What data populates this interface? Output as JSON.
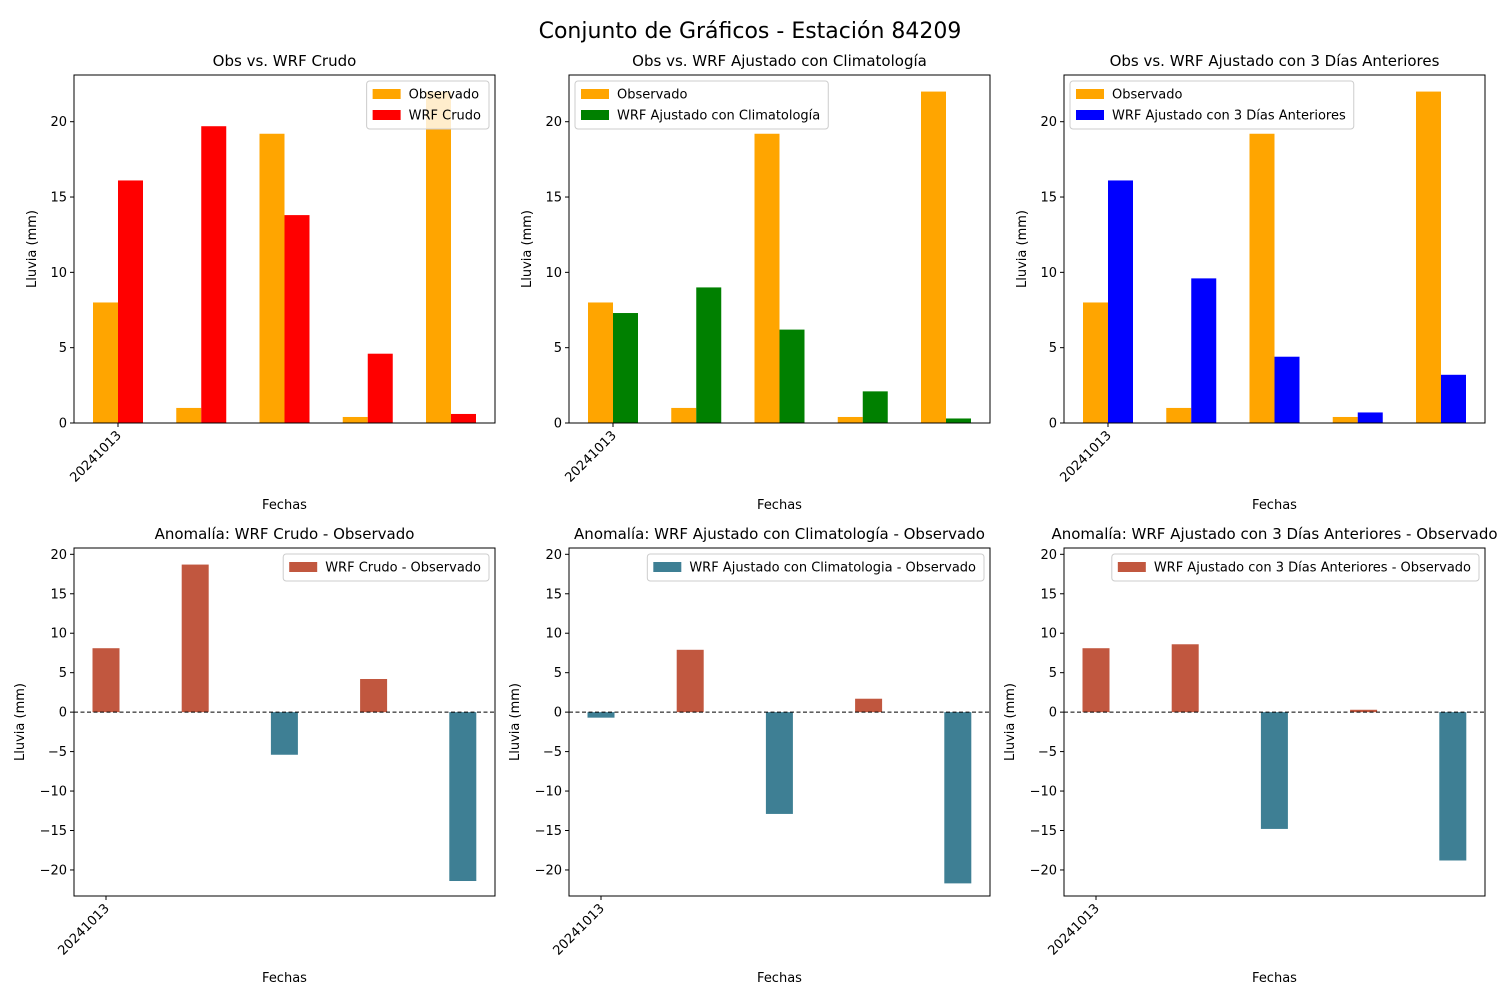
{
  "figure": {
    "title": "Conjunto de Gráficos - Estación 84209"
  },
  "colors": {
    "observado": "#FFA500",
    "wrf_crudo": "#FF0000",
    "wrf_clima": "#008000",
    "wrf_3dias": "#0000FF",
    "anom_pos": "#C1573F",
    "anom_neg": "#3E7F94"
  },
  "chart_data": [
    {
      "type": "bar",
      "title": "Obs vs. WRF Crudo",
      "xlabel": "Fechas",
      "ylabel": "Lluvia (mm)",
      "categories": [
        "20241013",
        "",
        "",
        "",
        ""
      ],
      "ylim": [
        0,
        23.1
      ],
      "yticks": [
        0,
        5,
        10,
        15,
        20
      ],
      "legend_position": "upper right",
      "series": [
        {
          "name": "Observado",
          "color_key": "observado",
          "values": [
            8.0,
            1.0,
            19.2,
            0.4,
            22.0
          ]
        },
        {
          "name": "WRF Crudo",
          "color_key": "wrf_crudo",
          "values": [
            16.1,
            19.7,
            13.8,
            4.6,
            0.6
          ]
        }
      ]
    },
    {
      "type": "bar",
      "title": "Obs vs. WRF Ajustado con Climatología",
      "xlabel": "Fechas",
      "ylabel": "Lluvia (mm)",
      "categories": [
        "20241013",
        "",
        "",
        "",
        ""
      ],
      "ylim": [
        0,
        23.1
      ],
      "yticks": [
        0,
        5,
        10,
        15,
        20
      ],
      "legend_position": "upper left",
      "series": [
        {
          "name": "Observado",
          "color_key": "observado",
          "values": [
            8.0,
            1.0,
            19.2,
            0.4,
            22.0
          ]
        },
        {
          "name": "WRF Ajustado con Climatología",
          "color_key": "wrf_clima",
          "values": [
            7.3,
            9.0,
            6.2,
            2.1,
            0.3
          ]
        }
      ]
    },
    {
      "type": "bar",
      "title": "Obs vs. WRF Ajustado con 3 Días Anteriores",
      "xlabel": "Fechas",
      "ylabel": "Lluvia (mm)",
      "categories": [
        "20241013",
        "",
        "",
        "",
        ""
      ],
      "ylim": [
        0,
        23.1
      ],
      "yticks": [
        0,
        5,
        10,
        15,
        20
      ],
      "legend_position": "upper left",
      "series": [
        {
          "name": "Observado",
          "color_key": "observado",
          "values": [
            8.0,
            1.0,
            19.2,
            0.4,
            22.0
          ]
        },
        {
          "name": "WRF Ajustado con 3 Días Anteriores",
          "color_key": "wrf_3dias",
          "values": [
            16.1,
            9.6,
            4.4,
            0.7,
            3.2
          ]
        }
      ]
    },
    {
      "type": "bar",
      "title": "Anomalía: WRF Crudo - Observado",
      "xlabel": "Fechas",
      "ylabel": "Lluvia (mm)",
      "categories": [
        "20241013",
        "",
        "",
        "",
        ""
      ],
      "ylim": [
        -23.3,
        20.8
      ],
      "yticks": [
        -20,
        -15,
        -10,
        -5,
        0,
        5,
        10,
        15,
        20
      ],
      "zero_line": "dashed",
      "legend_position": "upper right",
      "legend": {
        "label": "WRF Crudo - Observado",
        "color_key": "anom_pos"
      },
      "series": [
        {
          "name": "WRF Crudo - Observado",
          "values": [
            8.1,
            18.7,
            -5.4,
            4.2,
            -21.4
          ]
        }
      ]
    },
    {
      "type": "bar",
      "title": "Anomalía: WRF Ajustado con Climatología - Observado",
      "xlabel": "Fechas",
      "ylabel": "Lluvia (mm)",
      "categories": [
        "20241013",
        "",
        "",
        "",
        ""
      ],
      "ylim": [
        -23.3,
        20.8
      ],
      "yticks": [
        -20,
        -15,
        -10,
        -5,
        0,
        5,
        10,
        15,
        20
      ],
      "zero_line": "dashed",
      "legend_position": "upper right",
      "legend": {
        "label": "WRF Ajustado con Climatologia - Observado",
        "color_key": "anom_neg"
      },
      "series": [
        {
          "name": "WRF Ajustado con Climatologia - Observado",
          "values": [
            -0.7,
            7.9,
            -12.9,
            1.7,
            -21.7
          ]
        }
      ]
    },
    {
      "type": "bar",
      "title": "Anomalía: WRF Ajustado con 3 Días Anteriores - Observado",
      "xlabel": "Fechas",
      "ylabel": "Lluvia (mm)",
      "categories": [
        "20241013",
        "",
        "",
        "",
        ""
      ],
      "ylim": [
        -23.3,
        20.8
      ],
      "yticks": [
        -20,
        -15,
        -10,
        -5,
        0,
        5,
        10,
        15,
        20
      ],
      "zero_line": "dashed",
      "legend_position": "upper right",
      "legend": {
        "label": "WRF Ajustado con 3 Días Anteriores - Observado",
        "color_key": "anom_pos"
      },
      "series": [
        {
          "name": "WRF Ajustado con 3 Días Anteriores - Observado",
          "values": [
            8.1,
            8.6,
            -14.8,
            0.3,
            -18.8
          ]
        }
      ]
    }
  ]
}
